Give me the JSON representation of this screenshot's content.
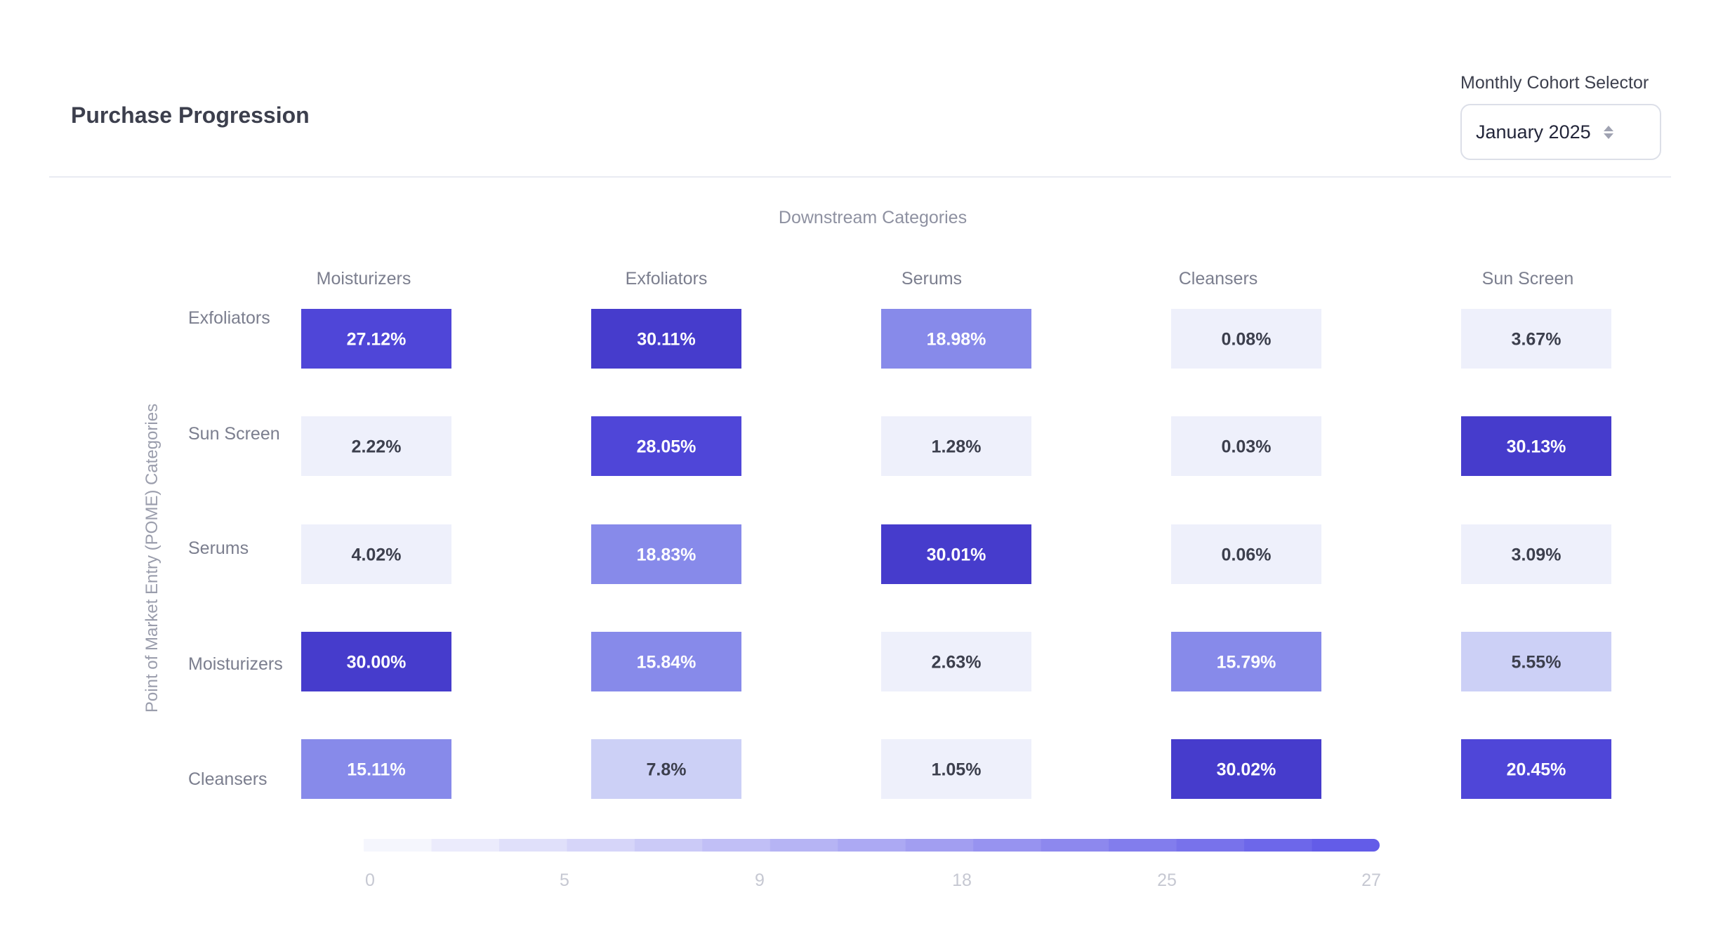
{
  "header": {
    "title": "Purchase Progression",
    "selector_label": "Monthly Cohort Selector",
    "selector_value": "January 2025"
  },
  "chart_data": {
    "type": "heatmap",
    "title": "Downstream Categories",
    "xlabel": "Downstream Categories",
    "ylabel": "Point of Market Entry (POME) Categories",
    "columns": [
      "Moisturizers",
      "Exfoliators",
      "Serums",
      "Cleansers",
      "Sun Screen"
    ],
    "rows": [
      "Exfoliators",
      "Sun Screen",
      "Serums",
      "Moisturizers",
      "Cleansers"
    ],
    "values": [
      [
        27.12,
        30.11,
        18.98,
        0.08,
        3.67
      ],
      [
        2.22,
        28.05,
        1.28,
        0.03,
        30.13
      ],
      [
        4.02,
        18.83,
        30.01,
        0.06,
        3.09
      ],
      [
        30.0,
        15.84,
        2.63,
        15.79,
        5.55
      ],
      [
        15.11,
        7.8,
        1.05,
        30.02,
        20.45
      ]
    ],
    "labels": [
      [
        "27.12%",
        "30.11%",
        "18.98%",
        "0.08%",
        "3.67%"
      ],
      [
        "2.22%",
        "28.05%",
        "1.28%",
        "0.03%",
        "30.13%"
      ],
      [
        "4.02%",
        "18.83%",
        "30.01%",
        "0.06%",
        "3.09%"
      ],
      [
        "30.00%",
        "15.84%",
        "2.63%",
        "15.79%",
        "5.55%"
      ],
      [
        "15.11%",
        "7.8%",
        "1.05%",
        "30.02%",
        "20.45%"
      ]
    ],
    "legend": {
      "ticks": [
        "0",
        "5",
        "9",
        "18",
        "25",
        "27"
      ],
      "segments": 15,
      "placement": "bottom"
    },
    "colors": {
      "low": "#eef0fb",
      "light": "#ccd0f6",
      "mid": "#878aea",
      "high": "#4f46d8",
      "max": "#463ccc",
      "text_dark": "#3c3f4d",
      "text_light": "#ffffff"
    }
  }
}
